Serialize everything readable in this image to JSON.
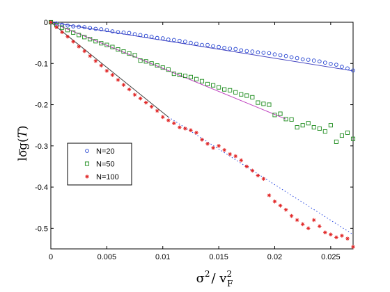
{
  "chart_data": {
    "type": "scatter",
    "title": "",
    "xlabel": {
      "base": "σ",
      "sup": "2",
      "sep": "/ v",
      "sub": "F",
      "sup2": "2"
    },
    "ylabel": {
      "pre": "log(",
      "var": "T",
      "post": ")"
    },
    "xlim": [
      0,
      0.027
    ],
    "ylim": [
      -0.55,
      0
    ],
    "x_ticks": [
      0,
      0.005,
      0.01,
      0.015,
      0.02,
      0.025
    ],
    "x_tick_labels": [
      "0",
      "0.005",
      "0.01",
      "0.015",
      "0.02",
      "0.025"
    ],
    "y_ticks": [
      0,
      -0.1,
      -0.2,
      -0.3,
      -0.4,
      -0.5
    ],
    "y_tick_labels": [
      "0",
      "-0.1",
      "-0.2",
      "-0.3",
      "-0.4",
      "-0.5"
    ],
    "grid": false,
    "legend_position": "left-middle",
    "series": [
      {
        "name": "N=20",
        "marker": "circle",
        "color": "#1f3fd0",
        "x": [
          0,
          0.0005,
          0.001,
          0.0015,
          0.002,
          0.0025,
          0.003,
          0.0035,
          0.004,
          0.0045,
          0.005,
          0.0055,
          0.006,
          0.0065,
          0.007,
          0.0075,
          0.008,
          0.0085,
          0.009,
          0.0095,
          0.01,
          0.0105,
          0.011,
          0.0115,
          0.012,
          0.0125,
          0.013,
          0.0135,
          0.014,
          0.0145,
          0.015,
          0.0155,
          0.016,
          0.0165,
          0.017,
          0.0175,
          0.018,
          0.0185,
          0.019,
          0.0195,
          0.02,
          0.0205,
          0.021,
          0.0215,
          0.022,
          0.0225,
          0.023,
          0.0235,
          0.024,
          0.0245,
          0.025,
          0.0255,
          0.026,
          0.0265,
          0.027
        ],
        "y": [
          0,
          -0.003,
          -0.006,
          -0.008,
          -0.01,
          -0.011,
          -0.012,
          -0.014,
          -0.016,
          -0.017,
          -0.019,
          -0.022,
          -0.024,
          -0.025,
          -0.026,
          -0.029,
          -0.031,
          -0.033,
          -0.035,
          -0.038,
          -0.039,
          -0.042,
          -0.043,
          -0.045,
          -0.047,
          -0.05,
          -0.052,
          -0.055,
          -0.055,
          -0.058,
          -0.06,
          -0.062,
          -0.064,
          -0.065,
          -0.068,
          -0.07,
          -0.071,
          -0.073,
          -0.074,
          -0.075,
          -0.078,
          -0.08,
          -0.082,
          -0.085,
          -0.087,
          -0.09,
          -0.091,
          -0.093,
          -0.095,
          -0.098,
          -0.101,
          -0.103,
          -0.108,
          -0.112,
          -0.117
        ]
      },
      {
        "name": "N=50",
        "marker": "square",
        "color": "#1a8a1a",
        "x": [
          0,
          0.0005,
          0.001,
          0.0015,
          0.002,
          0.0025,
          0.003,
          0.0035,
          0.004,
          0.0045,
          0.005,
          0.0055,
          0.006,
          0.0065,
          0.007,
          0.0075,
          0.008,
          0.0085,
          0.009,
          0.0095,
          0.01,
          0.0105,
          0.011,
          0.0115,
          0.012,
          0.0125,
          0.013,
          0.0135,
          0.014,
          0.0145,
          0.015,
          0.0155,
          0.016,
          0.0165,
          0.017,
          0.0175,
          0.018,
          0.0185,
          0.019,
          0.0195,
          0.02,
          0.0205,
          0.021,
          0.0215,
          0.022,
          0.0225,
          0.023,
          0.0235,
          0.024,
          0.0245,
          0.025,
          0.0255,
          0.026,
          0.0265,
          0.027
        ],
        "y": [
          0,
          -0.007,
          -0.013,
          -0.019,
          -0.025,
          -0.031,
          -0.036,
          -0.041,
          -0.046,
          -0.051,
          -0.055,
          -0.06,
          -0.066,
          -0.071,
          -0.076,
          -0.08,
          -0.093,
          -0.095,
          -0.1,
          -0.105,
          -0.11,
          -0.115,
          -0.125,
          -0.128,
          -0.13,
          -0.133,
          -0.138,
          -0.143,
          -0.15,
          -0.153,
          -0.158,
          -0.163,
          -0.165,
          -0.17,
          -0.175,
          -0.178,
          -0.182,
          -0.195,
          -0.198,
          -0.2,
          -0.225,
          -0.222,
          -0.235,
          -0.236,
          -0.255,
          -0.25,
          -0.245,
          -0.255,
          -0.258,
          -0.265,
          -0.25,
          -0.29,
          -0.275,
          -0.268,
          -0.283
        ]
      },
      {
        "name": "N=100",
        "marker": "star",
        "color": "#e02020",
        "x": [
          0,
          0.0005,
          0.001,
          0.0015,
          0.002,
          0.0025,
          0.003,
          0.0035,
          0.004,
          0.0045,
          0.005,
          0.0055,
          0.006,
          0.0065,
          0.007,
          0.0075,
          0.008,
          0.0085,
          0.009,
          0.0095,
          0.01,
          0.0105,
          0.011,
          0.0115,
          0.012,
          0.0125,
          0.013,
          0.0135,
          0.014,
          0.0145,
          0.015,
          0.0155,
          0.016,
          0.0165,
          0.017,
          0.0175,
          0.018,
          0.0185,
          0.019,
          0.0195,
          0.02,
          0.0205,
          0.021,
          0.0215,
          0.022,
          0.0225,
          0.023,
          0.0235,
          0.024,
          0.0245,
          0.025,
          0.0255,
          0.026,
          0.0265,
          0.027
        ],
        "y": [
          0,
          -0.012,
          -0.024,
          -0.035,
          -0.047,
          -0.059,
          -0.07,
          -0.082,
          -0.094,
          -0.105,
          -0.118,
          -0.128,
          -0.14,
          -0.152,
          -0.163,
          -0.176,
          -0.185,
          -0.195,
          -0.205,
          -0.215,
          -0.23,
          -0.238,
          -0.245,
          -0.255,
          -0.258,
          -0.262,
          -0.268,
          -0.285,
          -0.295,
          -0.305,
          -0.3,
          -0.31,
          -0.32,
          -0.325,
          -0.335,
          -0.35,
          -0.36,
          -0.372,
          -0.38,
          -0.42,
          -0.435,
          -0.445,
          -0.455,
          -0.47,
          -0.48,
          -0.49,
          -0.5,
          -0.48,
          -0.495,
          -0.51,
          -0.515,
          -0.522,
          -0.518,
          -0.525,
          -0.545
        ]
      }
    ],
    "fit_lines": [
      {
        "series": "N=20",
        "style": "solid",
        "color": "#3f3fbf",
        "x": [
          0,
          0.027
        ],
        "y": [
          0,
          -0.118
        ]
      },
      {
        "series": "N=50",
        "style": "solid",
        "color": "#bf3fbf",
        "x": [
          0,
          0.021
        ],
        "y": [
          0,
          -0.235
        ]
      },
      {
        "series": "N=100",
        "style": "solid",
        "color": "#3f3f3f",
        "x": [
          0,
          0.0105
        ],
        "y": [
          0,
          -0.23
        ]
      },
      {
        "series": "N=100",
        "style": "dotted",
        "color": "#2040e0",
        "x": [
          0.0105,
          0.027
        ],
        "y": [
          -0.23,
          -0.515
        ]
      }
    ]
  }
}
